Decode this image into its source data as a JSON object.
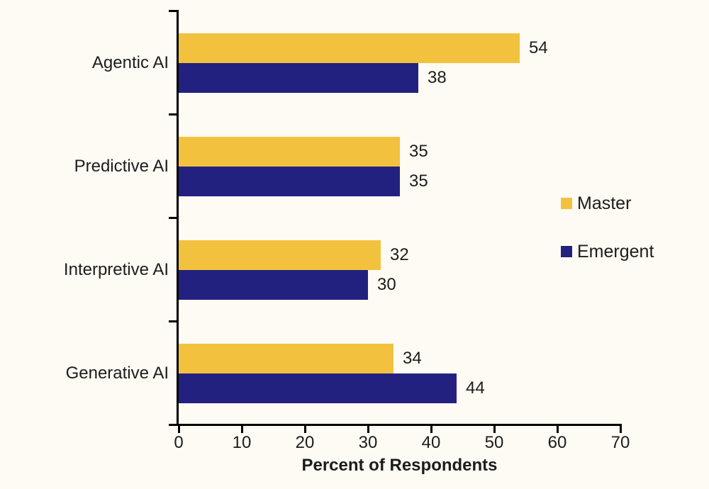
{
  "chart_data": {
    "type": "bar",
    "orientation": "horizontal",
    "title": "",
    "xlabel": "Percent of Respondents",
    "ylabel": "",
    "xlim": [
      0,
      70
    ],
    "xticks": [
      0,
      10,
      20,
      30,
      40,
      50,
      60,
      70
    ],
    "grid": false,
    "legend_position": "right",
    "value_labels_shown": true,
    "categories": [
      "Agentic AI",
      "Predictive AI",
      "Interpretive AI",
      "Generative AI"
    ],
    "series": [
      {
        "name": "Master",
        "color": "#F2C23F",
        "values": [
          54,
          35,
          32,
          34
        ]
      },
      {
        "name": "Emergent",
        "color": "#232180",
        "values": [
          38,
          35,
          30,
          44
        ]
      }
    ],
    "colors": {
      "background": "#FDFBF3",
      "text": "#1C1C1C",
      "axis": "#000000"
    }
  }
}
